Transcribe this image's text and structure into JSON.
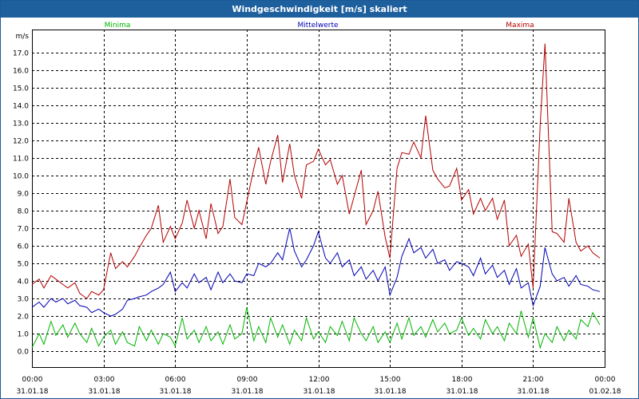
{
  "window": {
    "title": "Windgeschwindigkeit [m/s] skaliert"
  },
  "chart_data": {
    "type": "line",
    "title": "Windgeschwindigkeit [m/s] skaliert",
    "ylabel": "m/s",
    "ylim": [
      -0.9,
      18.3
    ],
    "yticks": [
      "0.0",
      "1.0",
      "2.0",
      "3.0",
      "4.0",
      "5.0",
      "6.0",
      "7.0",
      "8.0",
      "9.0",
      "10.0",
      "11.0",
      "12.0",
      "13.0",
      "14.0",
      "15.0",
      "16.0",
      "17.0"
    ],
    "xlim": [
      0,
      24
    ],
    "xticks": [
      {
        "time": "00:00",
        "date": "31.01.18"
      },
      {
        "time": "03:00",
        "date": "31.01.18"
      },
      {
        "time": "06:00",
        "date": "31.01.18"
      },
      {
        "time": "09:00",
        "date": "31.01.18"
      },
      {
        "time": "12:00",
        "date": "31.01.18"
      },
      {
        "time": "15:00",
        "date": "31.01.18"
      },
      {
        "time": "18:00",
        "date": "31.01.18"
      },
      {
        "time": "21:00",
        "date": "31.01.18"
      },
      {
        "time": "00:00",
        "date": "01.02.18"
      }
    ],
    "grid": true,
    "legend": [
      "Minima",
      "Mittelwerte",
      "Maxima"
    ],
    "series": [
      {
        "name": "Minima",
        "color": "#00b400",
        "x": [
          0,
          0.3,
          0.5,
          0.8,
          1.0,
          1.3,
          1.5,
          1.8,
          2.0,
          2.3,
          2.5,
          2.8,
          3.0,
          3.3,
          3.5,
          3.8,
          4.0,
          4.3,
          4.5,
          4.8,
          5.0,
          5.3,
          5.5,
          5.8,
          6.0,
          6.3,
          6.5,
          6.8,
          7.0,
          7.3,
          7.5,
          7.8,
          8.0,
          8.3,
          8.5,
          8.8,
          9.0,
          9.3,
          9.5,
          9.8,
          10.0,
          10.3,
          10.5,
          10.8,
          11.0,
          11.3,
          11.5,
          11.8,
          12.0,
          12.3,
          12.5,
          12.8,
          13.0,
          13.3,
          13.5,
          13.8,
          14.0,
          14.3,
          14.5,
          14.8,
          15.0,
          15.3,
          15.5,
          15.8,
          16.0,
          16.3,
          16.5,
          16.8,
          17.0,
          17.3,
          17.5,
          17.8,
          18.0,
          18.3,
          18.5,
          18.8,
          19.0,
          19.3,
          19.5,
          19.8,
          20.0,
          20.3,
          20.5,
          20.8,
          21.0,
          21.3,
          21.5,
          21.8,
          22.0,
          22.3,
          22.5,
          22.8,
          23.0,
          23.3,
          23.5,
          23.8
        ],
        "values": [
          0.2,
          1.0,
          0.4,
          1.7,
          0.9,
          1.5,
          0.8,
          1.6,
          1.0,
          0.5,
          1.3,
          0.3,
          0.8,
          1.2,
          0.4,
          1.1,
          0.5,
          0.3,
          1.4,
          0.6,
          1.2,
          0.4,
          1.0,
          0.8,
          0.3,
          1.9,
          0.7,
          1.2,
          0.5,
          1.4,
          0.6,
          1.1,
          0.4,
          1.5,
          0.7,
          1.0,
          2.5,
          0.6,
          1.4,
          0.5,
          1.9,
          0.8,
          1.5,
          0.4,
          1.2,
          0.6,
          1.9,
          0.7,
          1.1,
          0.5,
          1.4,
          0.9,
          1.7,
          0.6,
          1.9,
          1.0,
          0.6,
          1.4,
          0.5,
          1.1,
          0.5,
          1.6,
          0.7,
          1.9,
          0.9,
          1.4,
          0.8,
          1.8,
          1.1,
          1.6,
          1.0,
          1.2,
          1.9,
          0.9,
          1.3,
          0.7,
          1.8,
          1.0,
          1.4,
          0.6,
          1.6,
          1.0,
          2.3,
          0.8,
          1.9,
          0.2,
          1.0,
          0.5,
          1.4,
          0.6,
          1.2,
          0.7,
          1.8,
          1.4,
          2.2,
          1.5
        ]
      },
      {
        "name": "Mittelwerte",
        "color": "#0000b4",
        "x": [
          0,
          0.3,
          0.5,
          0.8,
          1.0,
          1.3,
          1.5,
          1.8,
          2.0,
          2.3,
          2.5,
          2.8,
          3.0,
          3.3,
          3.5,
          3.8,
          4.0,
          4.3,
          4.5,
          4.8,
          5.0,
          5.3,
          5.5,
          5.8,
          6.0,
          6.3,
          6.5,
          6.8,
          7.0,
          7.3,
          7.5,
          7.8,
          8.0,
          8.3,
          8.5,
          8.8,
          9.0,
          9.3,
          9.5,
          9.8,
          10.0,
          10.3,
          10.5,
          10.8,
          11.0,
          11.3,
          11.5,
          11.8,
          12.0,
          12.3,
          12.5,
          12.8,
          13.0,
          13.3,
          13.5,
          13.8,
          14.0,
          14.3,
          14.5,
          14.8,
          15.0,
          15.3,
          15.5,
          15.8,
          16.0,
          16.3,
          16.5,
          16.8,
          17.0,
          17.3,
          17.5,
          17.8,
          18.0,
          18.3,
          18.5,
          18.8,
          19.0,
          19.3,
          19.5,
          19.8,
          20.0,
          20.3,
          20.5,
          20.8,
          21.0,
          21.3,
          21.5,
          21.8,
          22.0,
          22.3,
          22.5,
          22.8,
          23.0,
          23.3,
          23.5,
          23.8
        ],
        "values": [
          2.5,
          2.8,
          2.5,
          3.0,
          2.8,
          3.0,
          2.7,
          2.9,
          2.6,
          2.5,
          2.2,
          2.4,
          2.2,
          2.0,
          2.1,
          2.4,
          2.9,
          3.0,
          3.1,
          3.2,
          3.4,
          3.6,
          3.8,
          4.5,
          3.4,
          3.9,
          3.6,
          4.4,
          3.9,
          4.2,
          3.5,
          4.5,
          3.9,
          4.4,
          4.0,
          3.9,
          4.4,
          4.3,
          5.0,
          4.8,
          5.0,
          5.6,
          5.2,
          7.0,
          5.7,
          4.8,
          5.2,
          6.0,
          6.8,
          5.3,
          5.0,
          5.6,
          4.8,
          5.2,
          4.3,
          4.8,
          4.1,
          4.6,
          4.0,
          4.8,
          3.2,
          4.2,
          5.4,
          6.4,
          5.6,
          5.9,
          5.3,
          5.8,
          5.0,
          5.2,
          4.6,
          5.1,
          5.0,
          4.8,
          4.3,
          5.3,
          4.4,
          4.9,
          4.2,
          4.6,
          3.8,
          4.7,
          3.6,
          3.9,
          2.6,
          3.7,
          5.9,
          4.4,
          4.0,
          4.2,
          3.7,
          4.3,
          3.8,
          3.7,
          3.5,
          3.4
        ]
      },
      {
        "name": "Maxima",
        "color": "#b40000",
        "x": [
          0,
          0.3,
          0.5,
          0.8,
          1.0,
          1.3,
          1.5,
          1.8,
          2.0,
          2.3,
          2.5,
          2.8,
          3.0,
          3.3,
          3.5,
          3.8,
          4.0,
          4.3,
          4.5,
          4.8,
          5.0,
          5.3,
          5.5,
          5.8,
          6.0,
          6.3,
          6.5,
          6.8,
          7.0,
          7.3,
          7.5,
          7.8,
          8.0,
          8.3,
          8.5,
          8.8,
          9.0,
          9.3,
          9.5,
          9.8,
          10.0,
          10.3,
          10.5,
          10.8,
          11.0,
          11.3,
          11.5,
          11.8,
          12.0,
          12.3,
          12.5,
          12.8,
          13.0,
          13.3,
          13.5,
          13.8,
          14.0,
          14.3,
          14.5,
          14.8,
          15.0,
          15.3,
          15.5,
          15.8,
          16.0,
          16.3,
          16.5,
          16.8,
          17.0,
          17.3,
          17.5,
          17.8,
          18.0,
          18.3,
          18.5,
          18.8,
          19.0,
          19.3,
          19.5,
          19.8,
          20.0,
          20.3,
          20.5,
          20.8,
          21.0,
          21.3,
          21.5,
          21.8,
          22.0,
          22.3,
          22.5,
          22.8,
          23.0,
          23.3,
          23.5,
          23.8
        ],
        "values": [
          3.8,
          4.1,
          3.6,
          4.3,
          4.1,
          3.8,
          3.6,
          3.9,
          3.3,
          3.0,
          3.4,
          3.2,
          3.5,
          5.6,
          4.7,
          5.1,
          4.8,
          5.4,
          5.9,
          6.6,
          7.0,
          8.3,
          6.2,
          7.1,
          6.4,
          7.3,
          8.6,
          7.0,
          8.0,
          6.4,
          8.4,
          6.7,
          7.1,
          9.8,
          7.6,
          7.2,
          8.5,
          10.4,
          11.6,
          9.5,
          10.8,
          12.3,
          9.6,
          11.8,
          10.0,
          8.7,
          10.6,
          10.8,
          11.5,
          10.6,
          10.9,
          9.5,
          10.0,
          7.8,
          8.8,
          10.3,
          7.2,
          8.0,
          9.1,
          6.5,
          5.3,
          10.4,
          11.3,
          11.2,
          11.9,
          11.0,
          13.4,
          10.3,
          9.8,
          9.3,
          9.4,
          10.4,
          8.6,
          9.2,
          7.8,
          8.7,
          8.0,
          8.7,
          7.5,
          8.6,
          6.0,
          6.6,
          5.4,
          6.1,
          3.6,
          12.9,
          17.5,
          6.8,
          6.7,
          6.2,
          8.7,
          6.2,
          5.7,
          6.0,
          5.6,
          5.3
        ]
      }
    ]
  }
}
